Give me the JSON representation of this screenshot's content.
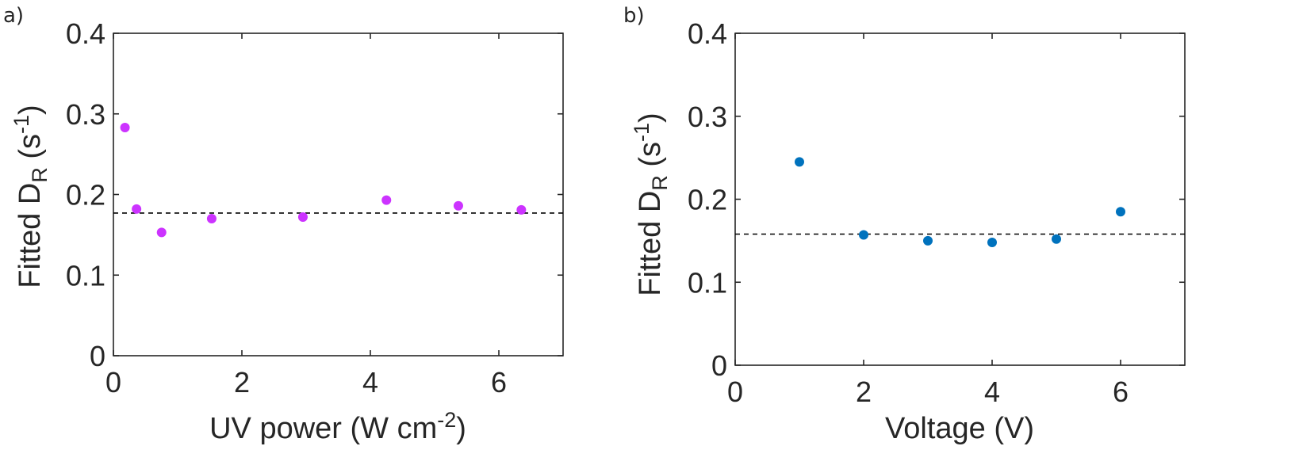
{
  "chart_data": [
    {
      "type": "scatter",
      "panel_label": "a)",
      "xlabel": {
        "main": "UV power (W cm",
        "sup": "-2",
        "end": ")"
      },
      "ylabel": {
        "main": "Fitted D",
        "sub": "R",
        "mid": " (s",
        "sup": "-1",
        "end": ")"
      },
      "xlim": [
        0,
        7
      ],
      "ylim": [
        0,
        0.4
      ],
      "xticks": [
        0,
        2,
        4,
        6
      ],
      "yticks": [
        0,
        0.1,
        0.2,
        0.3,
        0.4
      ],
      "xtick_labels": [
        "0",
        "2",
        "4",
        "6"
      ],
      "ytick_labels": [
        "0",
        "0.1",
        "0.2",
        "0.3",
        "0.4"
      ],
      "grid": false,
      "color": "#cc33ff",
      "points": [
        {
          "x": 0.18,
          "y": 0.283
        },
        {
          "x": 0.36,
          "y": 0.182
        },
        {
          "x": 0.75,
          "y": 0.153
        },
        {
          "x": 1.53,
          "y": 0.17
        },
        {
          "x": 2.95,
          "y": 0.172
        },
        {
          "x": 4.25,
          "y": 0.193
        },
        {
          "x": 5.37,
          "y": 0.186
        },
        {
          "x": 6.35,
          "y": 0.181
        }
      ],
      "reference_line": {
        "y": 0.177,
        "style": "dashed",
        "color": "#000000"
      }
    },
    {
      "type": "scatter",
      "panel_label": "b)",
      "xlabel": {
        "main": "Voltage (V)"
      },
      "ylabel": {
        "main": "Fitted D",
        "sub": "R",
        "mid": " (s",
        "sup": "-1",
        "end": ")"
      },
      "xlim": [
        0,
        7
      ],
      "ylim": [
        0,
        0.4
      ],
      "xticks": [
        0,
        2,
        4,
        6
      ],
      "yticks": [
        0,
        0.1,
        0.2,
        0.3,
        0.4
      ],
      "xtick_labels": [
        "0",
        "2",
        "4",
        "6"
      ],
      "ytick_labels": [
        "0",
        "0.1",
        "0.2",
        "0.3",
        "0.4"
      ],
      "grid": false,
      "color": "#0072bd",
      "points": [
        {
          "x": 1,
          "y": 0.245
        },
        {
          "x": 2,
          "y": 0.157
        },
        {
          "x": 3,
          "y": 0.15
        },
        {
          "x": 4,
          "y": 0.148
        },
        {
          "x": 5,
          "y": 0.152
        },
        {
          "x": 6,
          "y": 0.185
        }
      ],
      "reference_line": {
        "y": 0.158,
        "style": "dashed",
        "color": "#000000"
      }
    }
  ]
}
